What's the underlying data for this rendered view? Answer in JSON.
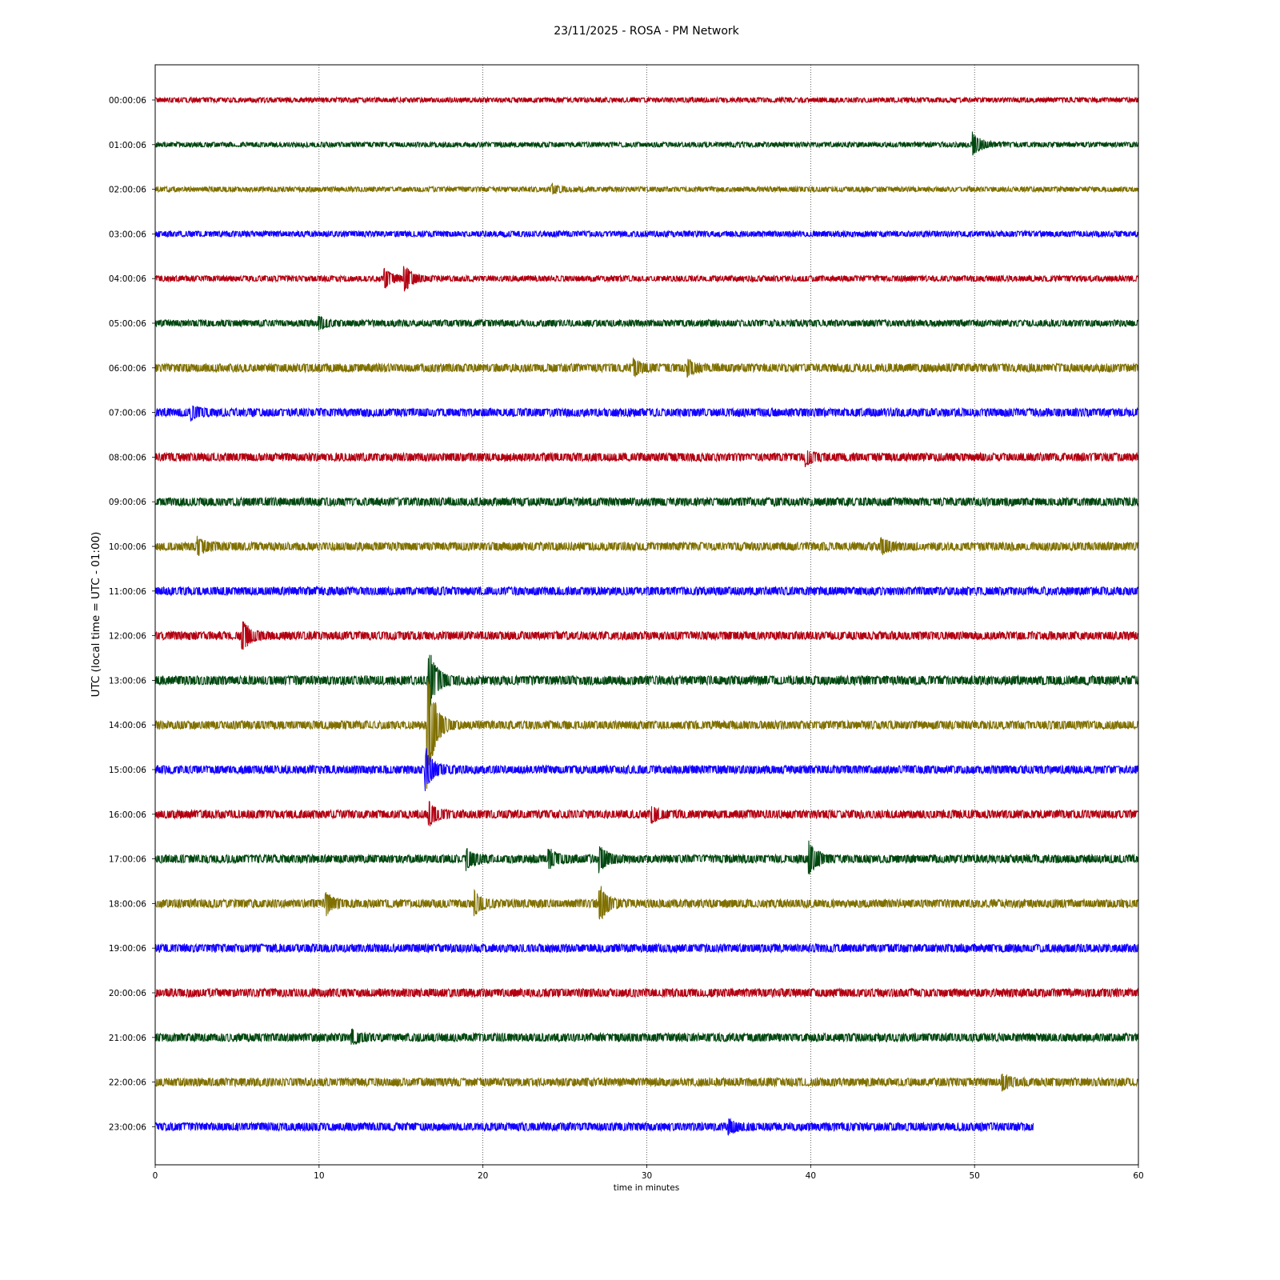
{
  "chart_data": {
    "type": "line",
    "title": "23/11/2025 - ROSA - PM Network",
    "xlabel": "time in minutes",
    "ylabel": "UTC (local time = UTC - 01:00)",
    "xlim": [
      0,
      60
    ],
    "x_ticks": [
      "0",
      "10",
      "20",
      "30",
      "40",
      "50",
      "60"
    ],
    "x_tick_values": [
      0,
      10,
      20,
      30,
      40,
      50,
      60
    ],
    "grid": "vertical dotted",
    "series_colors": [
      "#b30011",
      "#00470f",
      "#807000",
      "#1100ff"
    ],
    "rows": [
      {
        "label": "00:00:06",
        "end_minute": 60,
        "noise": 3,
        "events": []
      },
      {
        "label": "01:00:06",
        "end_minute": 60,
        "noise": 3,
        "events": [
          {
            "minute": 49.9,
            "amplitude": 14
          }
        ]
      },
      {
        "label": "02:00:06",
        "end_minute": 60,
        "noise": 3,
        "events": [
          {
            "minute": 24.2,
            "amplitude": 5
          }
        ]
      },
      {
        "label": "03:00:06",
        "end_minute": 60,
        "noise": 3.5,
        "events": []
      },
      {
        "label": "04:00:06",
        "end_minute": 60,
        "noise": 3.5,
        "events": [
          {
            "minute": 14.0,
            "amplitude": 11
          },
          {
            "minute": 15.2,
            "amplitude": 16
          }
        ]
      },
      {
        "label": "05:00:06",
        "end_minute": 60,
        "noise": 4,
        "events": [
          {
            "minute": 10.0,
            "amplitude": 7
          }
        ]
      },
      {
        "label": "06:00:06",
        "end_minute": 60,
        "noise": 5,
        "events": [
          {
            "minute": 29.2,
            "amplitude": 9
          },
          {
            "minute": 32.5,
            "amplitude": 8
          }
        ]
      },
      {
        "label": "07:00:06",
        "end_minute": 60,
        "noise": 5,
        "events": [
          {
            "minute": 2.2,
            "amplitude": 8
          }
        ]
      },
      {
        "label": "08:00:06",
        "end_minute": 60,
        "noise": 5,
        "events": [
          {
            "minute": 39.7,
            "amplitude": 8
          }
        ]
      },
      {
        "label": "09:00:06",
        "end_minute": 60,
        "noise": 5,
        "events": []
      },
      {
        "label": "10:00:06",
        "end_minute": 60,
        "noise": 5,
        "events": [
          {
            "minute": 2.6,
            "amplitude": 9
          },
          {
            "minute": 44.3,
            "amplitude": 9
          }
        ]
      },
      {
        "label": "11:00:06",
        "end_minute": 60,
        "noise": 5,
        "events": []
      },
      {
        "label": "12:00:06",
        "end_minute": 60,
        "noise": 5,
        "events": [
          {
            "minute": 5.3,
            "amplitude": 20
          }
        ]
      },
      {
        "label": "13:00:06",
        "end_minute": 60,
        "noise": 5.5,
        "events": [
          {
            "minute": 16.7,
            "amplitude": 40
          }
        ]
      },
      {
        "label": "14:00:06",
        "end_minute": 60,
        "noise": 5,
        "events": [
          {
            "minute": 16.6,
            "amplitude": 80
          }
        ]
      },
      {
        "label": "15:00:06",
        "end_minute": 60,
        "noise": 5,
        "events": [
          {
            "minute": 16.5,
            "amplitude": 25
          }
        ]
      },
      {
        "label": "16:00:06",
        "end_minute": 60,
        "noise": 5,
        "events": [
          {
            "minute": 16.7,
            "amplitude": 14
          },
          {
            "minute": 30.3,
            "amplitude": 9
          }
        ]
      },
      {
        "label": "17:00:06",
        "end_minute": 60,
        "noise": 5,
        "events": [
          {
            "minute": 19.0,
            "amplitude": 12
          },
          {
            "minute": 24.0,
            "amplitude": 12
          },
          {
            "minute": 27.1,
            "amplitude": 16
          },
          {
            "minute": 39.9,
            "amplitude": 22
          }
        ]
      },
      {
        "label": "18:00:06",
        "end_minute": 60,
        "noise": 5,
        "events": [
          {
            "minute": 10.4,
            "amplitude": 12
          },
          {
            "minute": 19.5,
            "amplitude": 12
          },
          {
            "minute": 27.1,
            "amplitude": 24
          }
        ]
      },
      {
        "label": "19:00:06",
        "end_minute": 60,
        "noise": 5,
        "events": []
      },
      {
        "label": "20:00:06",
        "end_minute": 60,
        "noise": 5,
        "events": []
      },
      {
        "label": "21:00:06",
        "end_minute": 60,
        "noise": 5,
        "events": [
          {
            "minute": 12.0,
            "amplitude": 8
          }
        ]
      },
      {
        "label": "22:00:06",
        "end_minute": 60,
        "noise": 5,
        "events": [
          {
            "minute": 51.7,
            "amplitude": 9
          }
        ]
      },
      {
        "label": "23:00:06",
        "end_minute": 53.6,
        "noise": 5,
        "events": [
          {
            "minute": 35.0,
            "amplitude": 7
          }
        ]
      }
    ]
  }
}
